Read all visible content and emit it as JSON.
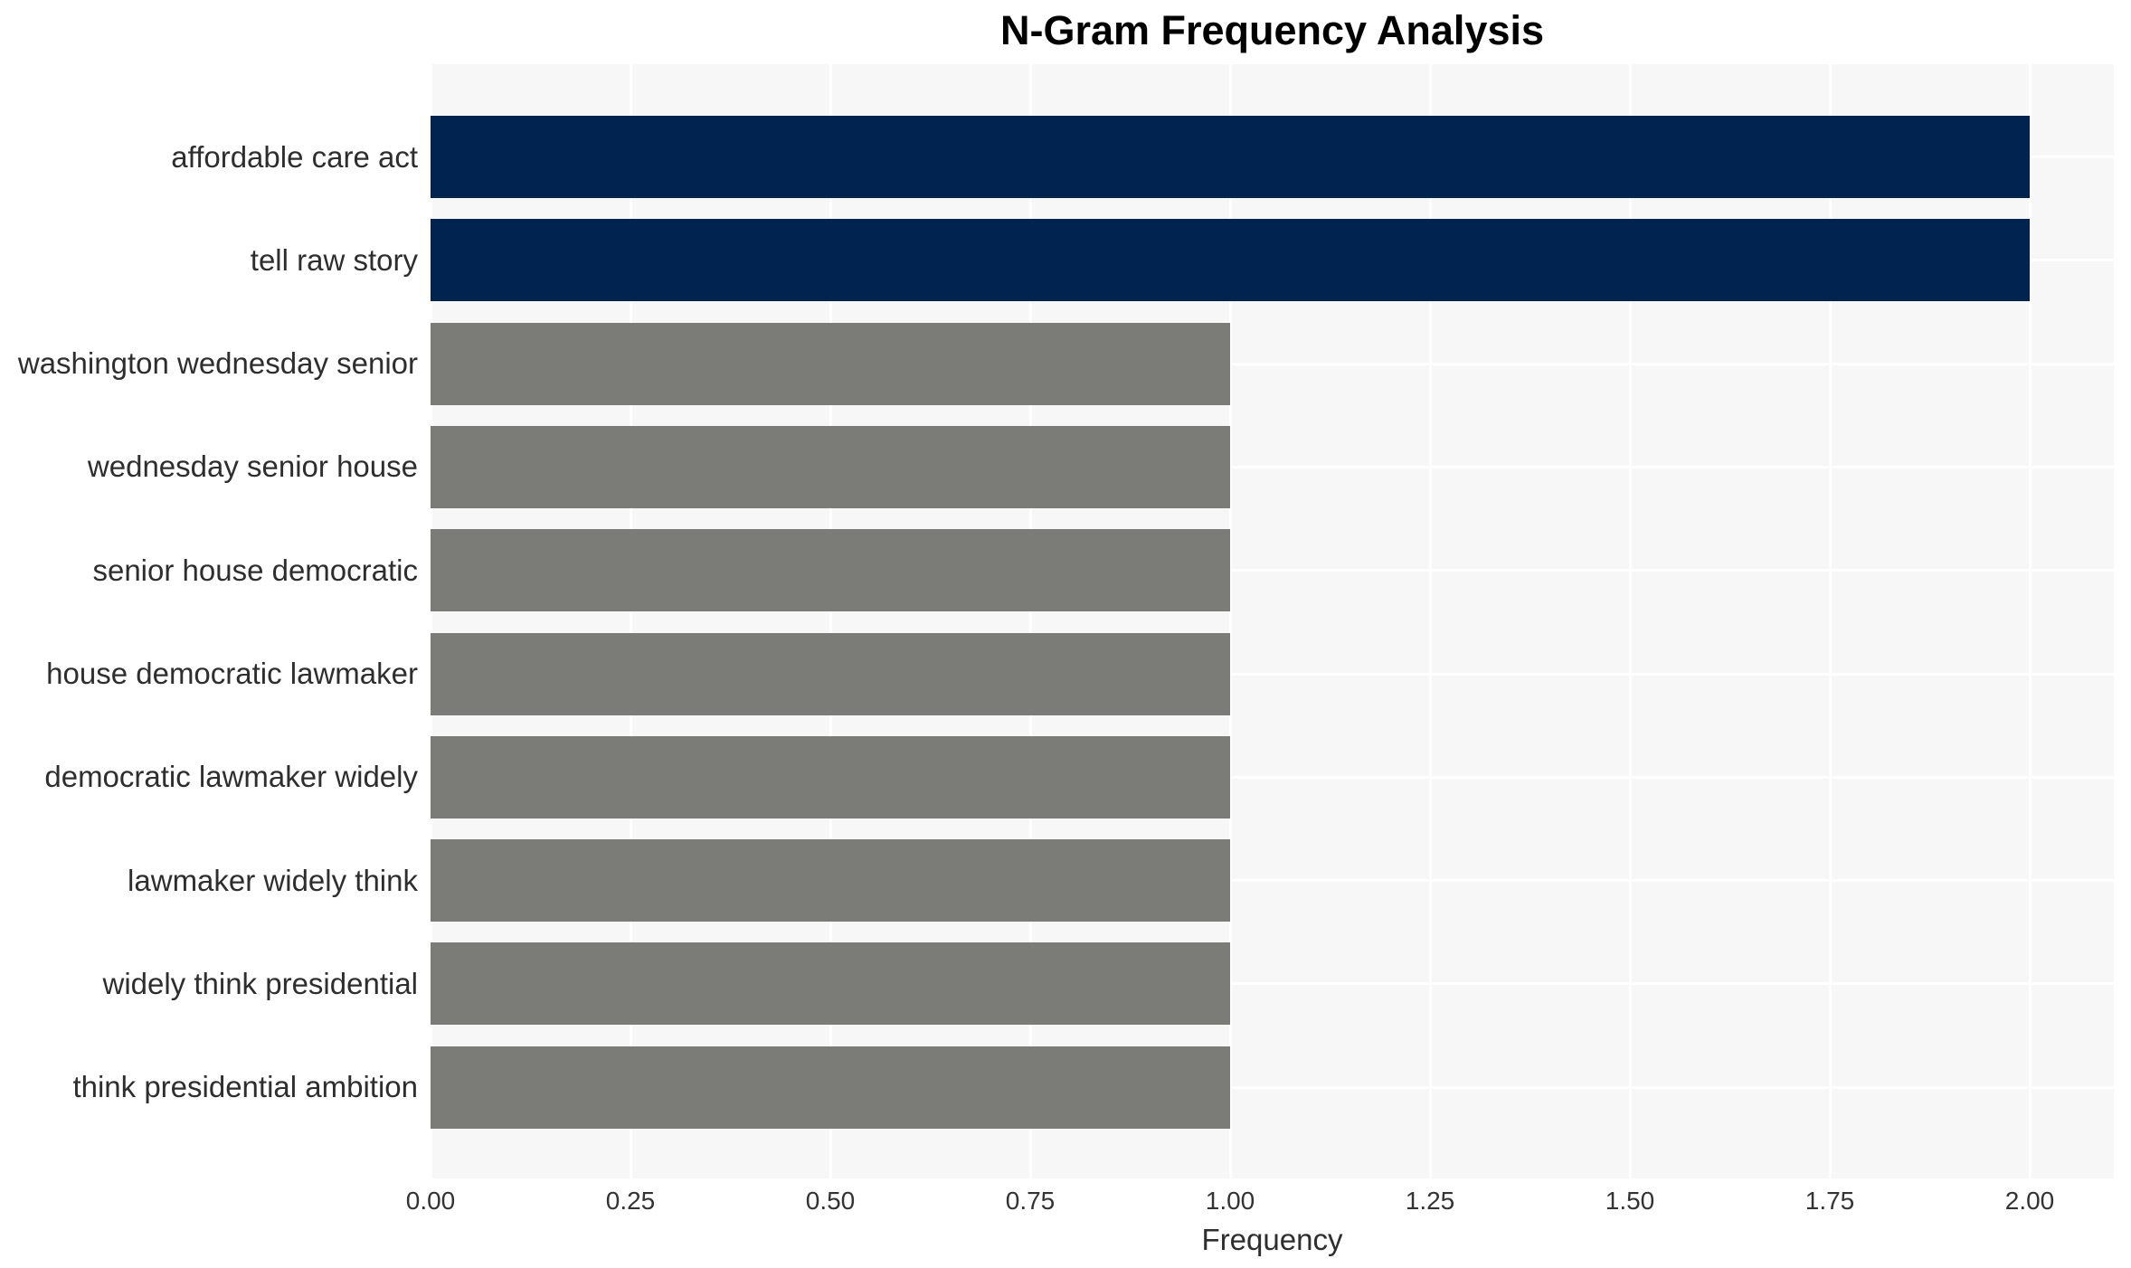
{
  "title": "N-Gram Frequency Analysis",
  "chart_data": {
    "type": "bar",
    "orientation": "horizontal",
    "title": "N-Gram Frequency Analysis",
    "xlabel": "Frequency",
    "ylabel": "",
    "categories": [
      "affordable care act",
      "tell raw story",
      "washington wednesday senior",
      "wednesday senior house",
      "senior house democratic",
      "house democratic lawmaker",
      "democratic lawmaker widely",
      "lawmaker widely think",
      "widely think presidential",
      "think presidential ambition"
    ],
    "values": [
      2.0,
      2.0,
      1.0,
      1.0,
      1.0,
      1.0,
      1.0,
      1.0,
      1.0,
      1.0
    ],
    "bar_colors": [
      "#00244f",
      "#00244f",
      "#7b7b78",
      "#7b7b78",
      "#7b7b78",
      "#7b7b78",
      "#7b7b78",
      "#7b7b78",
      "#7b7b78",
      "#7b7b78"
    ],
    "xticks": [
      0.0,
      0.25,
      0.5,
      0.75,
      1.0,
      1.25,
      1.5,
      1.75,
      2.0
    ],
    "xtick_labels": [
      "0.00",
      "0.25",
      "0.50",
      "0.75",
      "1.00",
      "1.25",
      "1.50",
      "1.75",
      "2.00"
    ],
    "xlim": [
      0,
      2.105
    ],
    "grid": true,
    "legend": false,
    "colors": {
      "highlight_bar": "#00244f",
      "default_bar": "#7b7b78",
      "plot_background": "#f7f7f7",
      "gridline": "#ffffff",
      "title_text": "#000000",
      "label_text": "#2e2e2e",
      "tick_text": "#333333"
    }
  }
}
